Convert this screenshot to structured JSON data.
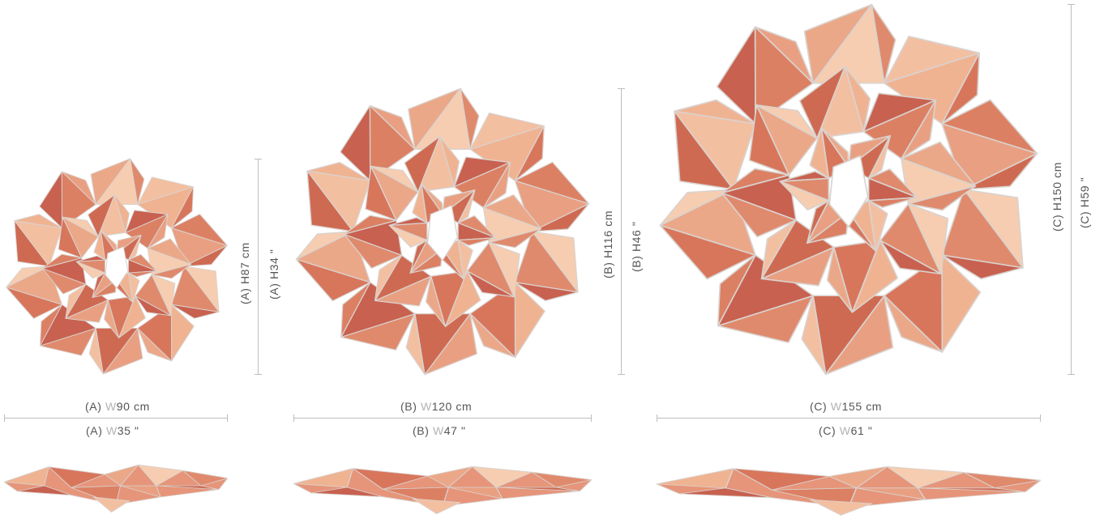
{
  "colors": {
    "panel_light": "#f4c6a6",
    "panel_mid": "#e6957a",
    "panel_dark": "#c9654e",
    "edge": "#d9d3cf",
    "dimension_line": "#bdbdbd",
    "text": "#555555",
    "letter_accent": "#b3b3b3"
  },
  "sizes": [
    {
      "id": "A",
      "width_cm": {
        "prefix": "(A) ",
        "letter": "W",
        "value": "90 cm"
      },
      "width_in": {
        "prefix": "(A) ",
        "letter": "W",
        "value": "35 \""
      },
      "height_cm": {
        "prefix": "(A) ",
        "letter": "H",
        "value": "87 cm"
      },
      "height_in": {
        "prefix": "(A) ",
        "letter": "H",
        "value": "34 \""
      }
    },
    {
      "id": "B",
      "width_cm": {
        "prefix": "(B) ",
        "letter": "W",
        "value": "120 cm"
      },
      "width_in": {
        "prefix": "(B) ",
        "letter": "W",
        "value": "47 \""
      },
      "height_cm": {
        "prefix": "(B) ",
        "letter": "H",
        "value": "116 cm"
      },
      "height_in": {
        "prefix": "(B) ",
        "letter": "H",
        "value": "46 \""
      }
    },
    {
      "id": "C",
      "width_cm": {
        "prefix": "(C) ",
        "letter": "W",
        "value": "155 cm"
      },
      "width_in": {
        "prefix": "(C) ",
        "letter": "W",
        "value": "61 \""
      },
      "height_cm": {
        "prefix": "(C) ",
        "letter": "H",
        "value": "150 cm"
      },
      "height_in": {
        "prefix": "(C) ",
        "letter": "H",
        "value": "59 \""
      }
    }
  ]
}
